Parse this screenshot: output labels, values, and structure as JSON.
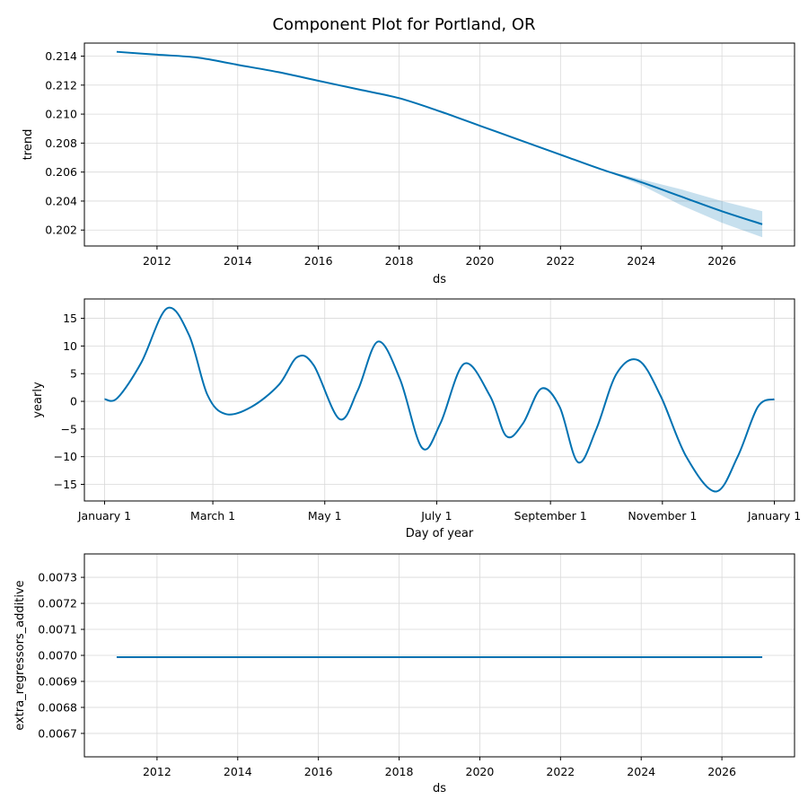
{
  "title": "Component Plot for Portland, OR",
  "colors": {
    "line": "#0072B2",
    "band": "#0072B2",
    "band_opacity": 0.22,
    "grid": "#d9d9d9"
  },
  "chart_data": [
    {
      "type": "area",
      "xlabel": "ds",
      "ylabel": "trend",
      "grid": true,
      "xlim": [
        2010.2,
        2027.8
      ],
      "ylim": [
        0.2009,
        0.2149
      ],
      "x_ticks": [
        2012,
        2014,
        2016,
        2018,
        2020,
        2022,
        2024,
        2026
      ],
      "x_tick_labels": [
        "2012",
        "2014",
        "2016",
        "2018",
        "2020",
        "2022",
        "2024",
        "2026"
      ],
      "y_ticks": [
        0.202,
        0.204,
        0.206,
        0.208,
        0.21,
        0.212,
        0.214
      ],
      "y_tick_labels": [
        "0.202",
        "0.204",
        "0.206",
        "0.208",
        "0.210",
        "0.212",
        "0.214"
      ],
      "series": [
        {
          "x": [
            2011,
            2012,
            2013,
            2014,
            2015,
            2016,
            2017,
            2018,
            2019,
            2020,
            2021,
            2022,
            2023,
            2024,
            2025,
            2026,
            2027
          ],
          "values": [
            0.2143,
            0.2141,
            0.2139,
            0.2134,
            0.2129,
            0.2123,
            0.2117,
            0.2111,
            0.2102,
            0.2092,
            0.2082,
            0.2072,
            0.2062,
            0.2053,
            0.2043,
            0.2033,
            0.2024
          ],
          "lower": [
            0.2143,
            0.2141,
            0.2139,
            0.2134,
            0.2129,
            0.2123,
            0.2117,
            0.2111,
            0.2102,
            0.2092,
            0.2082,
            0.2072,
            0.2062,
            0.2051,
            0.2037,
            0.2025,
            0.2015
          ],
          "upper": [
            0.2143,
            0.2141,
            0.2139,
            0.2134,
            0.2129,
            0.2123,
            0.2117,
            0.2111,
            0.2102,
            0.2092,
            0.2082,
            0.2072,
            0.2062,
            0.2055,
            0.2048,
            0.204,
            0.2033
          ]
        }
      ]
    },
    {
      "type": "line",
      "xlabel": "Day of year",
      "ylabel": "yearly",
      "grid": true,
      "xlim": [
        -11,
        376
      ],
      "ylim": [
        -18,
        18.5
      ],
      "x_ticks": [
        0,
        59,
        120,
        181,
        243,
        304,
        365
      ],
      "x_tick_labels": [
        "January 1",
        "March 1",
        "May 1",
        "July 1",
        "September 1",
        "November 1",
        "January 1"
      ],
      "y_ticks": [
        -15,
        -10,
        -5,
        0,
        5,
        10,
        15
      ],
      "y_tick_labels": [
        "−15",
        "−10",
        "−5",
        "0",
        "5",
        "10",
        "15"
      ],
      "series": [
        {
          "x": [
            0,
            7,
            20,
            34,
            46,
            56,
            66,
            80,
            95,
            105,
            114,
            128,
            138,
            149,
            161,
            173,
            183,
            196,
            210,
            219,
            228,
            238,
            248,
            258,
            268,
            279,
            291,
            303,
            317,
            333,
            345,
            356,
            365
          ],
          "values": [
            0.4,
            0.6,
            7.0,
            16.8,
            12.0,
            1.2,
            -2.3,
            -1.0,
            3.0,
            8.0,
            6.5,
            -3.2,
            2.0,
            10.8,
            4.0,
            -8.4,
            -4.0,
            6.8,
            1.0,
            -6.3,
            -4.0,
            2.3,
            -1.0,
            -11.0,
            -5.0,
            5.0,
            7.4,
            1.0,
            -10.0,
            -16.3,
            -10.0,
            -1.0,
            0.4
          ]
        }
      ]
    },
    {
      "type": "line",
      "xlabel": "ds",
      "ylabel": "extra_regressors_additive",
      "grid": true,
      "xlim": [
        2010.2,
        2027.8
      ],
      "ylim": [
        0.00661,
        0.00739
      ],
      "x_ticks": [
        2012,
        2014,
        2016,
        2018,
        2020,
        2022,
        2024,
        2026
      ],
      "x_tick_labels": [
        "2012",
        "2014",
        "2016",
        "2018",
        "2020",
        "2022",
        "2024",
        "2026"
      ],
      "y_ticks": [
        0.0067,
        0.0068,
        0.0069,
        0.007,
        0.0071,
        0.0072,
        0.0073
      ],
      "y_tick_labels": [
        "0.0067",
        "0.0068",
        "0.0069",
        "0.0070",
        "0.0071",
        "0.0072",
        "0.0073"
      ],
      "series": [
        {
          "x": [
            2011,
            2027
          ],
          "values": [
            0.006993,
            0.006993
          ]
        }
      ]
    }
  ]
}
